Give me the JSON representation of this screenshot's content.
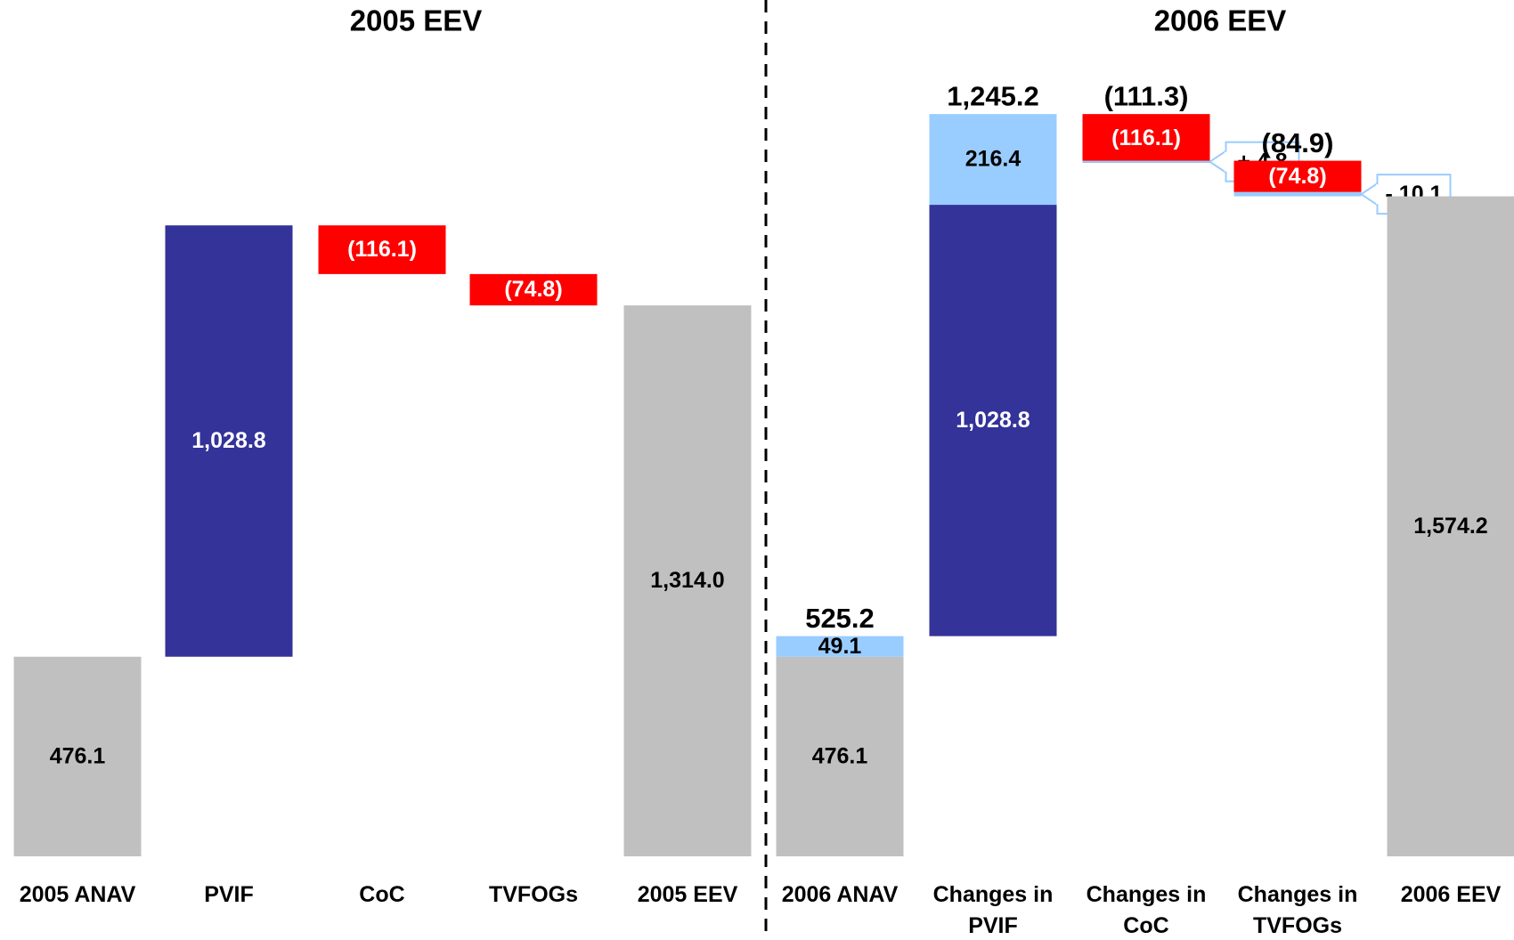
{
  "chart_data": [
    {
      "type": "waterfall",
      "title": "2005 EEV",
      "categories": [
        "2005 ANAV",
        "PVIF",
        "CoC",
        "TVFOGs",
        "2005 EEV"
      ],
      "ylim": [
        0,
        2000
      ],
      "series": [
        {
          "color": "#c0c0c0",
          "label_color": "#000000",
          "values": [
            476.1,
            null,
            null,
            null,
            1314.0
          ],
          "value_labels": [
            null,
            null,
            null,
            null,
            "1,314.0"
          ]
        },
        {
          "color": "#333399",
          "label_color": "#ffffff",
          "values": [
            null,
            1028.8,
            null,
            null,
            null
          ],
          "value_labels": [
            null,
            "1,028.8",
            null,
            null,
            null
          ]
        },
        {
          "color": "#ff0000",
          "label_color": "#ffffff",
          "values": [
            null,
            null,
            -116.1,
            -74.8,
            null
          ],
          "value_labels": [
            null,
            null,
            "(116.1)",
            "(74.8)",
            null
          ]
        }
      ]
    },
    {
      "type": "waterfall",
      "title": "2006 EEV",
      "categories": [
        "2006 ANAV",
        "Changes in PVIF",
        "Changes in CoC",
        "Changes in TVFOGs",
        "2006 EEV"
      ],
      "ylim": [
        0,
        2000
      ],
      "series": [
        {
          "color": "#c0c0c0",
          "label_color": "#000000",
          "values": [
            476.1,
            null,
            null,
            null,
            1574.2
          ],
          "value_labels": [
            null,
            null,
            null,
            null,
            "1,574.2"
          ]
        },
        {
          "color": "#333399",
          "label_color": "#ffffff",
          "values": [
            null,
            1028.8,
            null,
            null,
            null
          ],
          "value_labels": [
            null,
            "1,028.8",
            null,
            null,
            null
          ]
        },
        {
          "color": "#ff0000",
          "label_color": "#ffffff",
          "values": [
            null,
            null,
            -116.1,
            -74.8,
            null
          ],
          "value_labels": [
            null,
            null,
            "(116.1)",
            "(74.8)",
            null
          ]
        },
        {
          "color": "#99ccff",
          "label_color": "#000000",
          "values": [
            49.1,
            216.4,
            4.8,
            -10.1,
            null
          ],
          "value_labels": [
            null,
            null,
            "+ 4.8",
            "- 10.1",
            null
          ]
        }
      ],
      "totals": [
        525.2,
        1245.2,
        -111.3,
        -84.9,
        null
      ],
      "total_labels": [
        "525.2",
        "1,245.2",
        "(111.3)",
        "(84.9)",
        null
      ]
    }
  ]
}
